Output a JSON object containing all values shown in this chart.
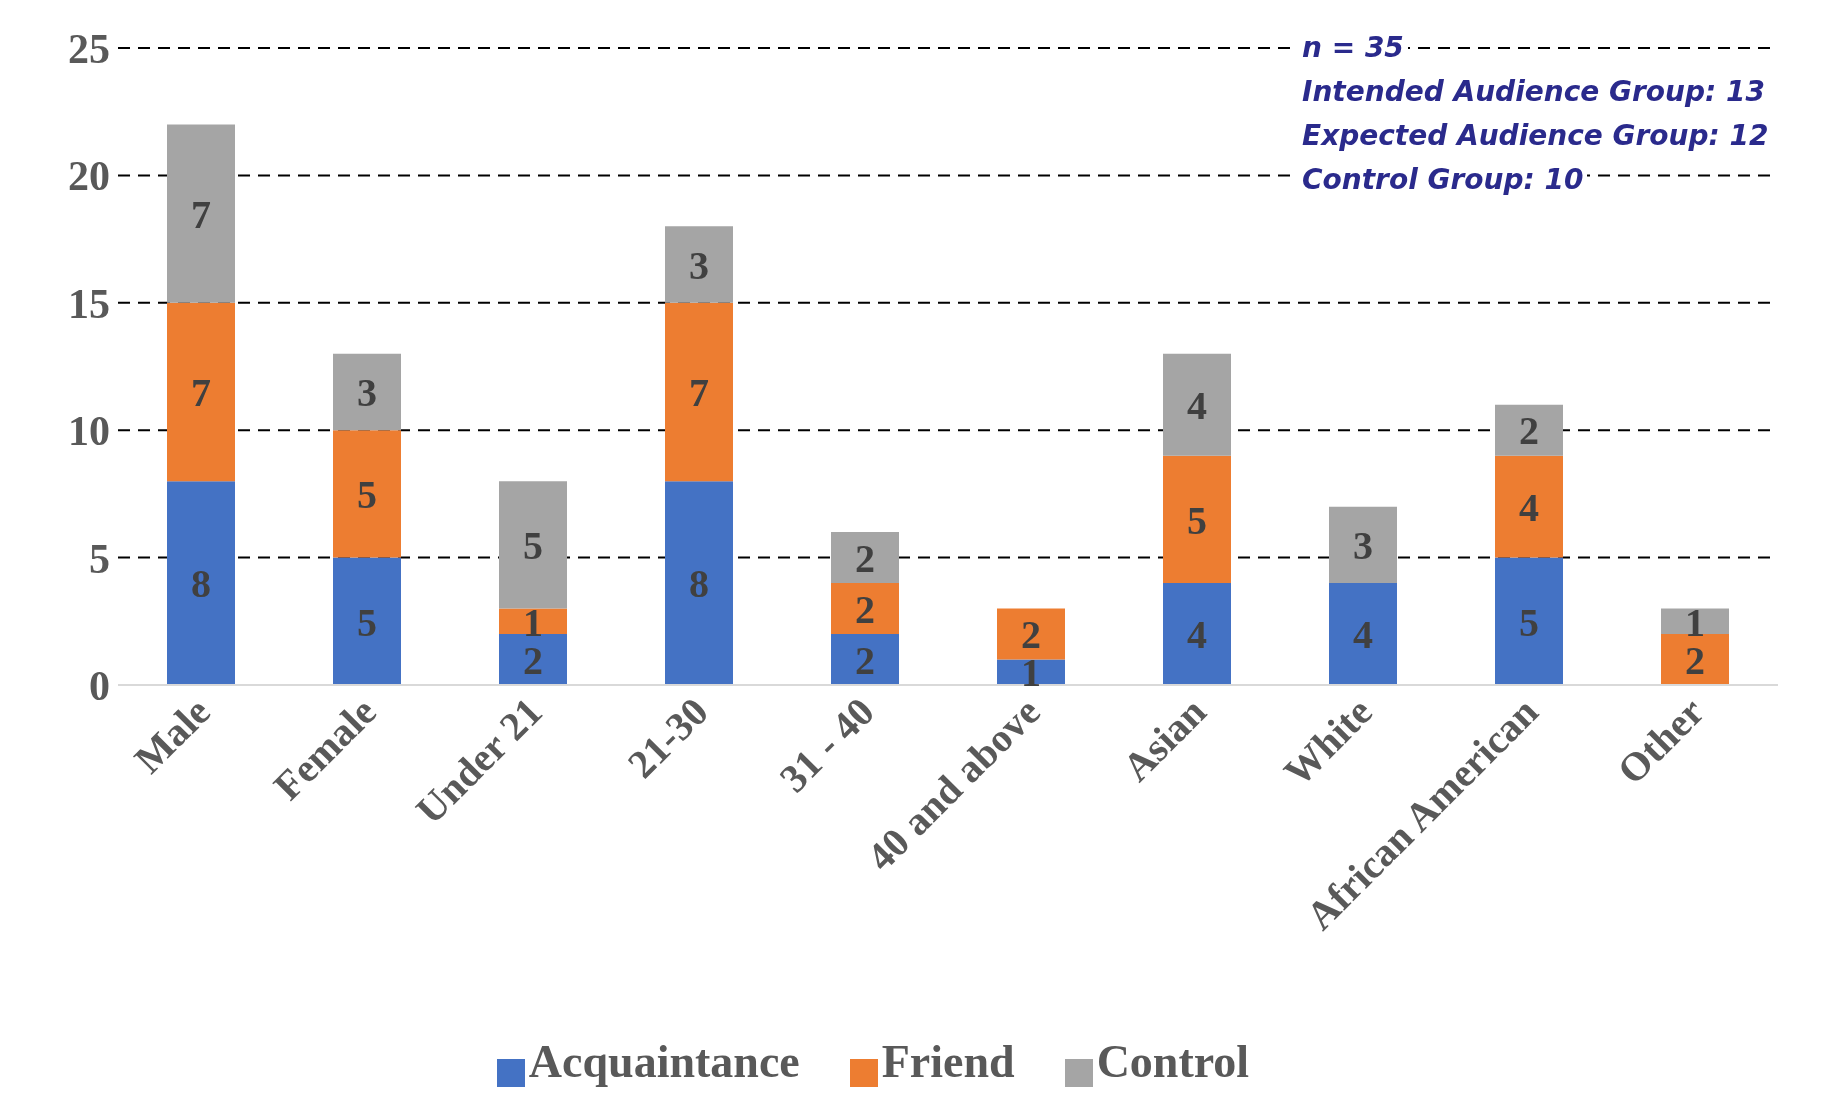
{
  "chart_data": {
    "type": "bar",
    "stacked": true,
    "categories": [
      "Male",
      "Female",
      "Under 21",
      "21-30",
      "31 - 40",
      "40 and above",
      "Asian",
      "White",
      "African American",
      "Other"
    ],
    "series": [
      {
        "name": "Acquaintance",
        "color": "#4472c4",
        "values": [
          8,
          5,
          2,
          8,
          2,
          1,
          4,
          4,
          5,
          null
        ]
      },
      {
        "name": "Friend",
        "color": "#ed7d31",
        "values": [
          7,
          5,
          1,
          7,
          2,
          2,
          5,
          null,
          4,
          2
        ]
      },
      {
        "name": "Control",
        "color": "#a5a5a5",
        "values": [
          7,
          3,
          5,
          3,
          2,
          null,
          4,
          3,
          2,
          1
        ]
      }
    ],
    "ylim": [
      0,
      25
    ],
    "yticks": [
      0,
      5,
      10,
      15,
      20,
      25
    ],
    "grid": "y",
    "legend": "bottom",
    "data_labels": true,
    "annotations": [
      "n = 35",
      "Intended Audience Group: 13",
      "Expected Audience Group: 12",
      "Control Group: 10"
    ]
  }
}
